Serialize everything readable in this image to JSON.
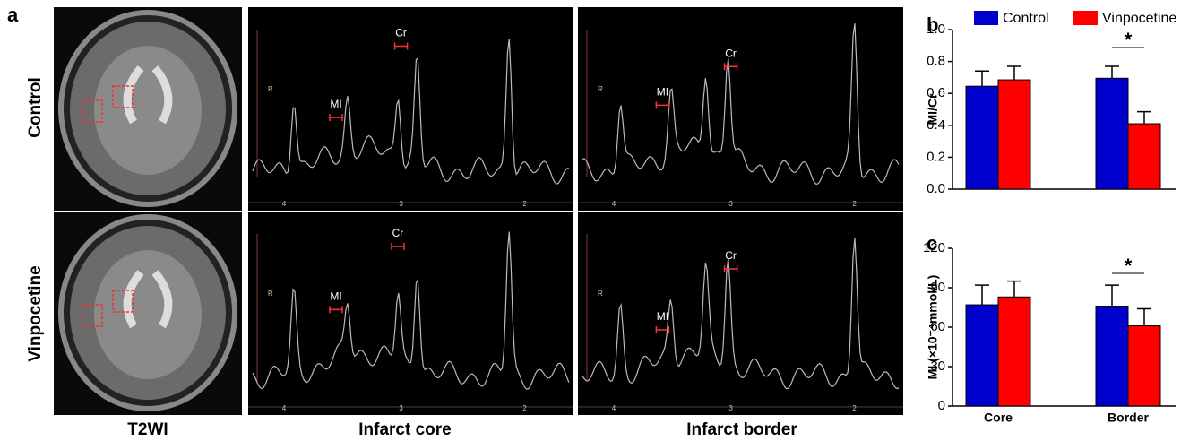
{
  "panel_a": {
    "label": "a",
    "rows": [
      "Control",
      "Vinpocetine"
    ],
    "columns": [
      "T2WI",
      "Infarct core",
      "Infarct border"
    ],
    "peak_labels": [
      "MI",
      "Cr"
    ],
    "marker": "R",
    "ppm_ticks": [
      "4",
      "3",
      "2"
    ]
  },
  "chart_data": [
    {
      "type": "bar",
      "panel_label": "b",
      "y_label": "MI/Cr",
      "categories": [
        null,
        null
      ],
      "series": [
        {
          "name": "Control",
          "color": "#0000cc",
          "values": [
            0.645,
            0.695
          ],
          "errors": [
            0.095,
            0.075
          ]
        },
        {
          "name": "Vinpocetine",
          "color": "#ff0000",
          "values": [
            0.685,
            0.41
          ],
          "errors": [
            0.085,
            0.075
          ]
        }
      ],
      "ylim": [
        0,
        1
      ],
      "yticks": [
        {
          "value": 0,
          "label": "0.0"
        },
        0.2,
        0.4,
        0.6,
        0.8,
        {
          "value": 1,
          "label": "1.0"
        }
      ],
      "annotation": "*",
      "legend": "top"
    },
    {
      "type": "bar",
      "panel_label": "c",
      "y_label": "MI (×10⁻⁴mmol/L)",
      "categories": [
        "Core",
        "Border"
      ],
      "series": [
        {
          "name": "Control",
          "color": "#0000cc",
          "values": [
            77,
            76
          ],
          "errors": [
            15,
            16
          ]
        },
        {
          "name": "Vinpocetine",
          "color": "#ff0000",
          "values": [
            83,
            61
          ],
          "errors": [
            12,
            13
          ]
        }
      ],
      "ylim": [
        0,
        120
      ],
      "yticks": [
        0,
        30,
        60,
        90,
        120
      ],
      "annotation": "*"
    }
  ]
}
